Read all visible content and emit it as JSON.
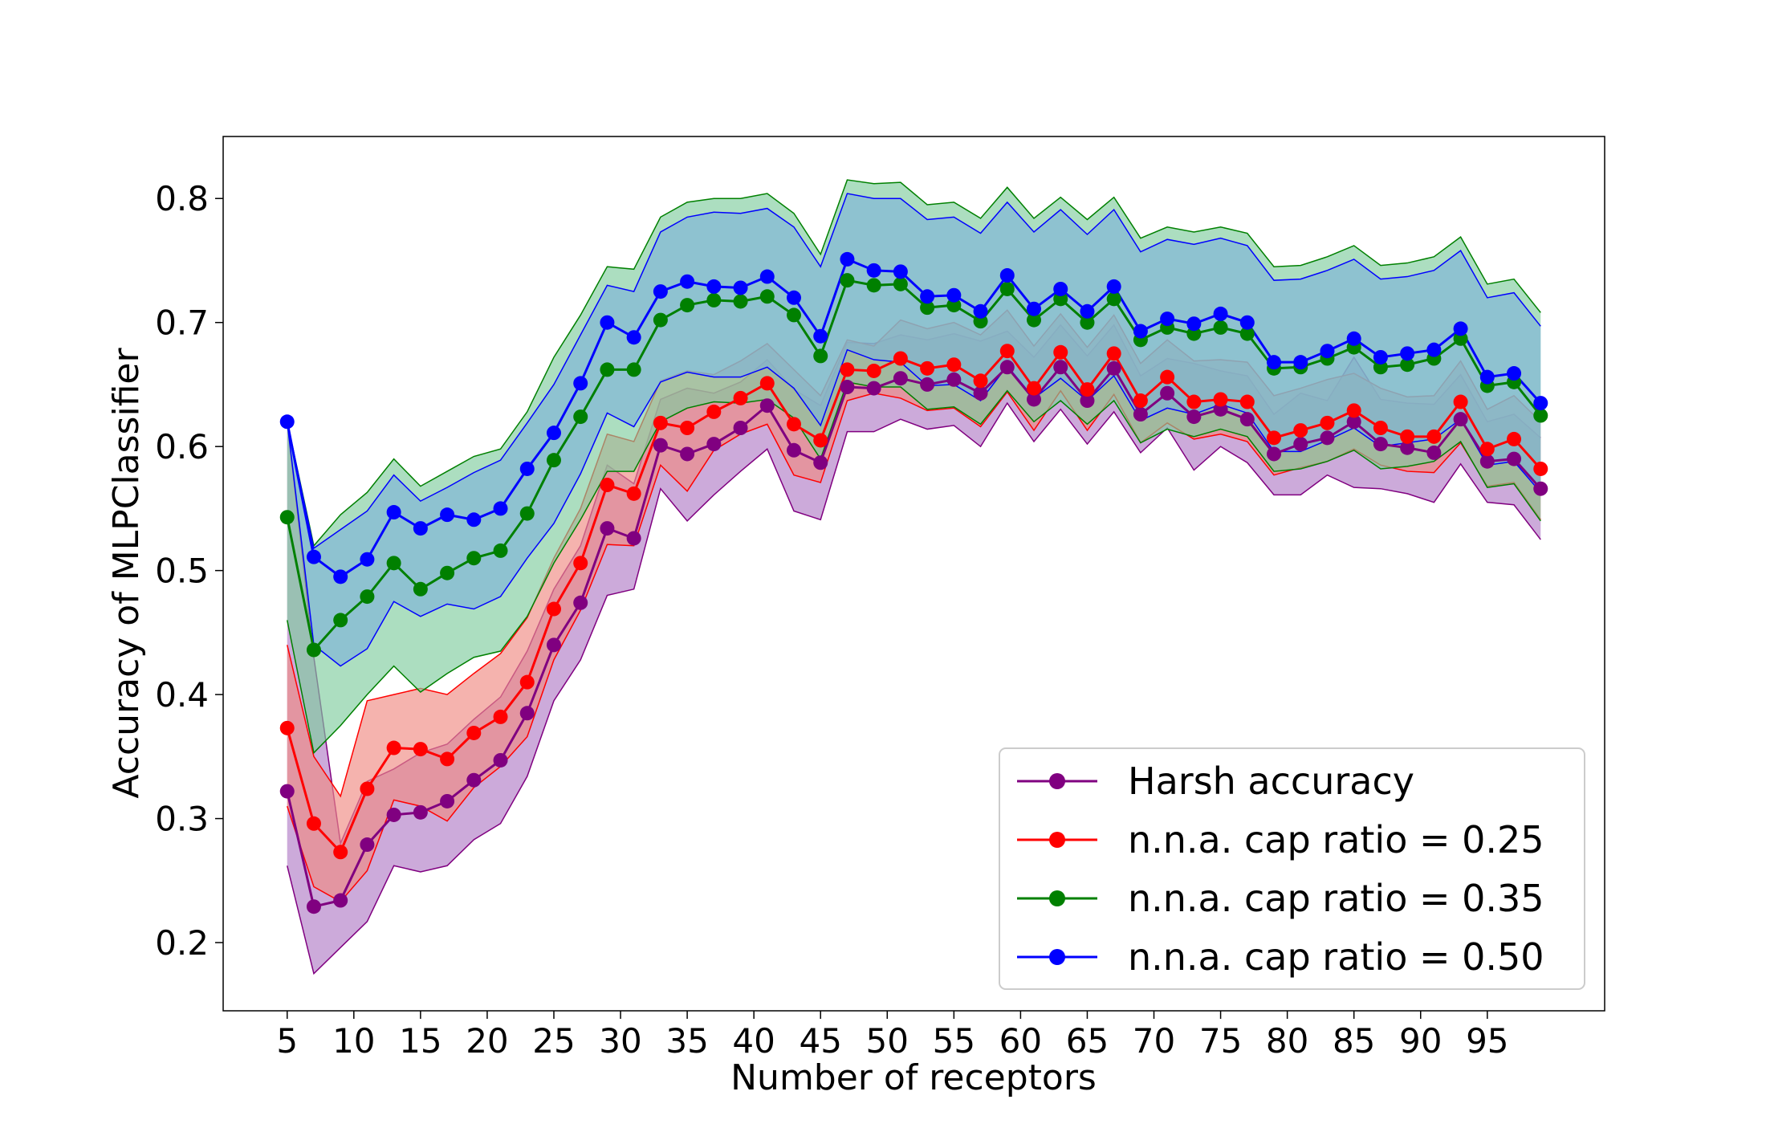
{
  "chart_data": {
    "type": "line",
    "title": "",
    "xlabel": "Number of receptors",
    "ylabel": "Accuracy of MLPClassifier",
    "xlim": [
      0.2,
      103.8
    ],
    "ylim": [
      0.145,
      0.85
    ],
    "xticks": [
      5,
      10,
      15,
      20,
      25,
      30,
      35,
      40,
      45,
      50,
      55,
      60,
      65,
      70,
      75,
      80,
      85,
      90,
      95
    ],
    "xtick_labels": [
      "5",
      "10",
      "15",
      "20",
      "25",
      "30",
      "35",
      "40",
      "45",
      "50",
      "55",
      "60",
      "65",
      "70",
      "75",
      "80",
      "85",
      "90",
      "95"
    ],
    "yticks": [
      0.2,
      0.3,
      0.4,
      0.5,
      0.6,
      0.7,
      0.8
    ],
    "ytick_labels": [
      "0.2",
      "0.3",
      "0.4",
      "0.5",
      "0.6",
      "0.7",
      "0.8"
    ],
    "grid": false,
    "legend_position": "bottom-right",
    "x": [
      5,
      7,
      9,
      11,
      13,
      15,
      17,
      19,
      21,
      23,
      25,
      27,
      29,
      31,
      33,
      35,
      37,
      39,
      41,
      43,
      45,
      47,
      49,
      51,
      53,
      55,
      57,
      59,
      61,
      63,
      65,
      67,
      69,
      71,
      73,
      75,
      77,
      79,
      81,
      83,
      85,
      87,
      89,
      91,
      93,
      95,
      97,
      99
    ],
    "series": [
      {
        "name": "Harsh accuracy",
        "color": "#800080",
        "values": [
          0.322,
          0.229,
          0.234,
          0.279,
          0.303,
          0.305,
          0.314,
          0.331,
          0.347,
          0.385,
          0.44,
          0.474,
          0.534,
          0.526,
          0.601,
          0.594,
          0.602,
          0.615,
          0.633,
          0.597,
          0.587,
          0.648,
          0.647,
          0.655,
          0.65,
          0.654,
          0.643,
          0.664,
          0.638,
          0.664,
          0.637,
          0.663,
          0.626,
          0.643,
          0.624,
          0.63,
          0.622,
          0.594,
          0.602,
          0.607,
          0.62,
          0.602,
          0.599,
          0.595,
          0.622,
          0.588,
          0.59,
          0.566
        ],
        "lower": [
          0.262,
          0.175,
          0.196,
          0.217,
          0.262,
          0.257,
          0.262,
          0.283,
          0.296,
          0.334,
          0.395,
          0.428,
          0.48,
          0.485,
          0.566,
          0.54,
          0.561,
          0.58,
          0.598,
          0.548,
          0.541,
          0.612,
          0.612,
          0.622,
          0.614,
          0.617,
          0.6,
          0.635,
          0.604,
          0.63,
          0.602,
          0.628,
          0.595,
          0.615,
          0.581,
          0.6,
          0.587,
          0.561,
          0.561,
          0.577,
          0.567,
          0.566,
          0.562,
          0.555,
          0.586,
          0.555,
          0.553,
          0.525
        ],
        "upper": [
          0.62,
          0.43,
          0.28,
          0.33,
          0.34,
          0.353,
          0.36,
          0.38,
          0.398,
          0.435,
          0.485,
          0.52,
          0.585,
          0.57,
          0.638,
          0.647,
          0.643,
          0.652,
          0.67,
          0.646,
          0.633,
          0.684,
          0.683,
          0.69,
          0.686,
          0.691,
          0.685,
          0.693,
          0.672,
          0.698,
          0.673,
          0.698,
          0.657,
          0.671,
          0.667,
          0.661,
          0.657,
          0.626,
          0.643,
          0.637,
          0.672,
          0.638,
          0.635,
          0.634,
          0.658,
          0.62,
          0.626,
          0.607
        ]
      },
      {
        "name": "n.n.a. cap ratio = 0.25",
        "color": "#ff0000",
        "values": [
          0.373,
          0.296,
          0.273,
          0.324,
          0.357,
          0.356,
          0.348,
          0.369,
          0.382,
          0.41,
          0.469,
          0.506,
          0.569,
          0.562,
          0.619,
          0.615,
          0.628,
          0.639,
          0.651,
          0.618,
          0.605,
          0.662,
          0.661,
          0.671,
          0.663,
          0.666,
          0.653,
          0.677,
          0.647,
          0.676,
          0.646,
          0.675,
          0.637,
          0.656,
          0.636,
          0.638,
          0.636,
          0.607,
          0.613,
          0.619,
          0.629,
          0.615,
          0.608,
          0.608,
          0.636,
          0.598,
          0.606,
          0.582
        ],
        "lower": [
          0.31,
          0.245,
          0.233,
          0.258,
          0.315,
          0.31,
          0.298,
          0.325,
          0.342,
          0.366,
          0.428,
          0.468,
          0.521,
          0.52,
          0.585,
          0.564,
          0.597,
          0.61,
          0.618,
          0.577,
          0.571,
          0.637,
          0.643,
          0.639,
          0.629,
          0.631,
          0.616,
          0.644,
          0.613,
          0.645,
          0.613,
          0.642,
          0.603,
          0.619,
          0.606,
          0.61,
          0.604,
          0.577,
          0.583,
          0.588,
          0.598,
          0.585,
          0.58,
          0.579,
          0.603,
          0.568,
          0.571,
          0.541
        ],
        "upper": [
          0.44,
          0.35,
          0.318,
          0.395,
          0.4,
          0.405,
          0.4,
          0.417,
          0.433,
          0.462,
          0.51,
          0.55,
          0.61,
          0.604,
          0.653,
          0.661,
          0.658,
          0.669,
          0.683,
          0.662,
          0.641,
          0.686,
          0.681,
          0.702,
          0.695,
          0.7,
          0.69,
          0.71,
          0.681,
          0.707,
          0.68,
          0.706,
          0.667,
          0.686,
          0.669,
          0.67,
          0.668,
          0.641,
          0.647,
          0.654,
          0.659,
          0.647,
          0.64,
          0.641,
          0.669,
          0.63,
          0.641,
          0.62
        ]
      },
      {
        "name": "n.n.a. cap ratio = 0.35",
        "color": "#008000",
        "values": [
          0.543,
          0.436,
          0.46,
          0.479,
          0.506,
          0.485,
          0.498,
          0.51,
          0.516,
          0.546,
          0.589,
          0.624,
          0.662,
          0.662,
          0.702,
          0.714,
          0.718,
          0.717,
          0.721,
          0.706,
          0.673,
          0.734,
          0.73,
          0.731,
          0.712,
          0.714,
          0.701,
          0.727,
          0.702,
          0.719,
          0.7,
          0.719,
          0.686,
          0.696,
          0.691,
          0.696,
          0.691,
          0.663,
          0.664,
          0.671,
          0.68,
          0.664,
          0.666,
          0.671,
          0.687,
          0.649,
          0.652,
          0.625
        ],
        "lower": [
          0.46,
          0.353,
          0.375,
          0.4,
          0.423,
          0.402,
          0.417,
          0.43,
          0.435,
          0.463,
          0.506,
          0.541,
          0.58,
          0.58,
          0.62,
          0.631,
          0.636,
          0.635,
          0.638,
          0.623,
          0.59,
          0.652,
          0.648,
          0.648,
          0.63,
          0.632,
          0.618,
          0.645,
          0.62,
          0.637,
          0.618,
          0.637,
          0.603,
          0.614,
          0.608,
          0.614,
          0.608,
          0.58,
          0.582,
          0.588,
          0.597,
          0.582,
          0.584,
          0.588,
          0.604,
          0.567,
          0.57,
          0.54
        ],
        "upper": [
          0.62,
          0.52,
          0.545,
          0.563,
          0.59,
          0.568,
          0.58,
          0.592,
          0.598,
          0.628,
          0.672,
          0.706,
          0.745,
          0.743,
          0.785,
          0.797,
          0.8,
          0.8,
          0.804,
          0.788,
          0.755,
          0.815,
          0.812,
          0.813,
          0.795,
          0.797,
          0.784,
          0.809,
          0.784,
          0.801,
          0.783,
          0.801,
          0.768,
          0.777,
          0.773,
          0.777,
          0.772,
          0.745,
          0.746,
          0.753,
          0.762,
          0.746,
          0.748,
          0.753,
          0.769,
          0.731,
          0.735,
          0.708
        ]
      },
      {
        "name": "n.n.a. cap ratio = 0.50",
        "color": "#0000ff",
        "values": [
          0.62,
          0.511,
          0.495,
          0.509,
          0.547,
          0.534,
          0.545,
          0.541,
          0.55,
          0.582,
          0.611,
          0.651,
          0.7,
          0.688,
          0.725,
          0.733,
          0.729,
          0.728,
          0.737,
          0.72,
          0.689,
          0.751,
          0.742,
          0.741,
          0.721,
          0.722,
          0.709,
          0.738,
          0.711,
          0.727,
          0.709,
          0.729,
          0.693,
          0.703,
          0.699,
          0.707,
          0.7,
          0.668,
          0.668,
          0.677,
          0.687,
          0.672,
          0.675,
          0.678,
          0.695,
          0.656,
          0.659,
          0.635
        ],
        "lower": [
          0.62,
          0.44,
          0.423,
          0.437,
          0.475,
          0.463,
          0.473,
          0.469,
          0.479,
          0.51,
          0.538,
          0.578,
          0.627,
          0.616,
          0.652,
          0.66,
          0.656,
          0.656,
          0.664,
          0.647,
          0.617,
          0.678,
          0.67,
          0.668,
          0.649,
          0.65,
          0.637,
          0.665,
          0.639,
          0.655,
          0.637,
          0.657,
          0.621,
          0.631,
          0.626,
          0.634,
          0.627,
          0.596,
          0.596,
          0.605,
          0.615,
          0.6,
          0.603,
          0.606,
          0.622,
          0.585,
          0.588,
          0.563
        ],
        "upper": [
          0.62,
          0.518,
          0.533,
          0.548,
          0.577,
          0.556,
          0.567,
          0.579,
          0.589,
          0.619,
          0.65,
          0.69,
          0.73,
          0.725,
          0.773,
          0.785,
          0.789,
          0.788,
          0.792,
          0.777,
          0.745,
          0.804,
          0.8,
          0.8,
          0.783,
          0.785,
          0.772,
          0.797,
          0.773,
          0.791,
          0.771,
          0.791,
          0.757,
          0.767,
          0.763,
          0.768,
          0.762,
          0.734,
          0.735,
          0.742,
          0.751,
          0.735,
          0.737,
          0.742,
          0.758,
          0.72,
          0.724,
          0.697
        ]
      }
    ]
  }
}
